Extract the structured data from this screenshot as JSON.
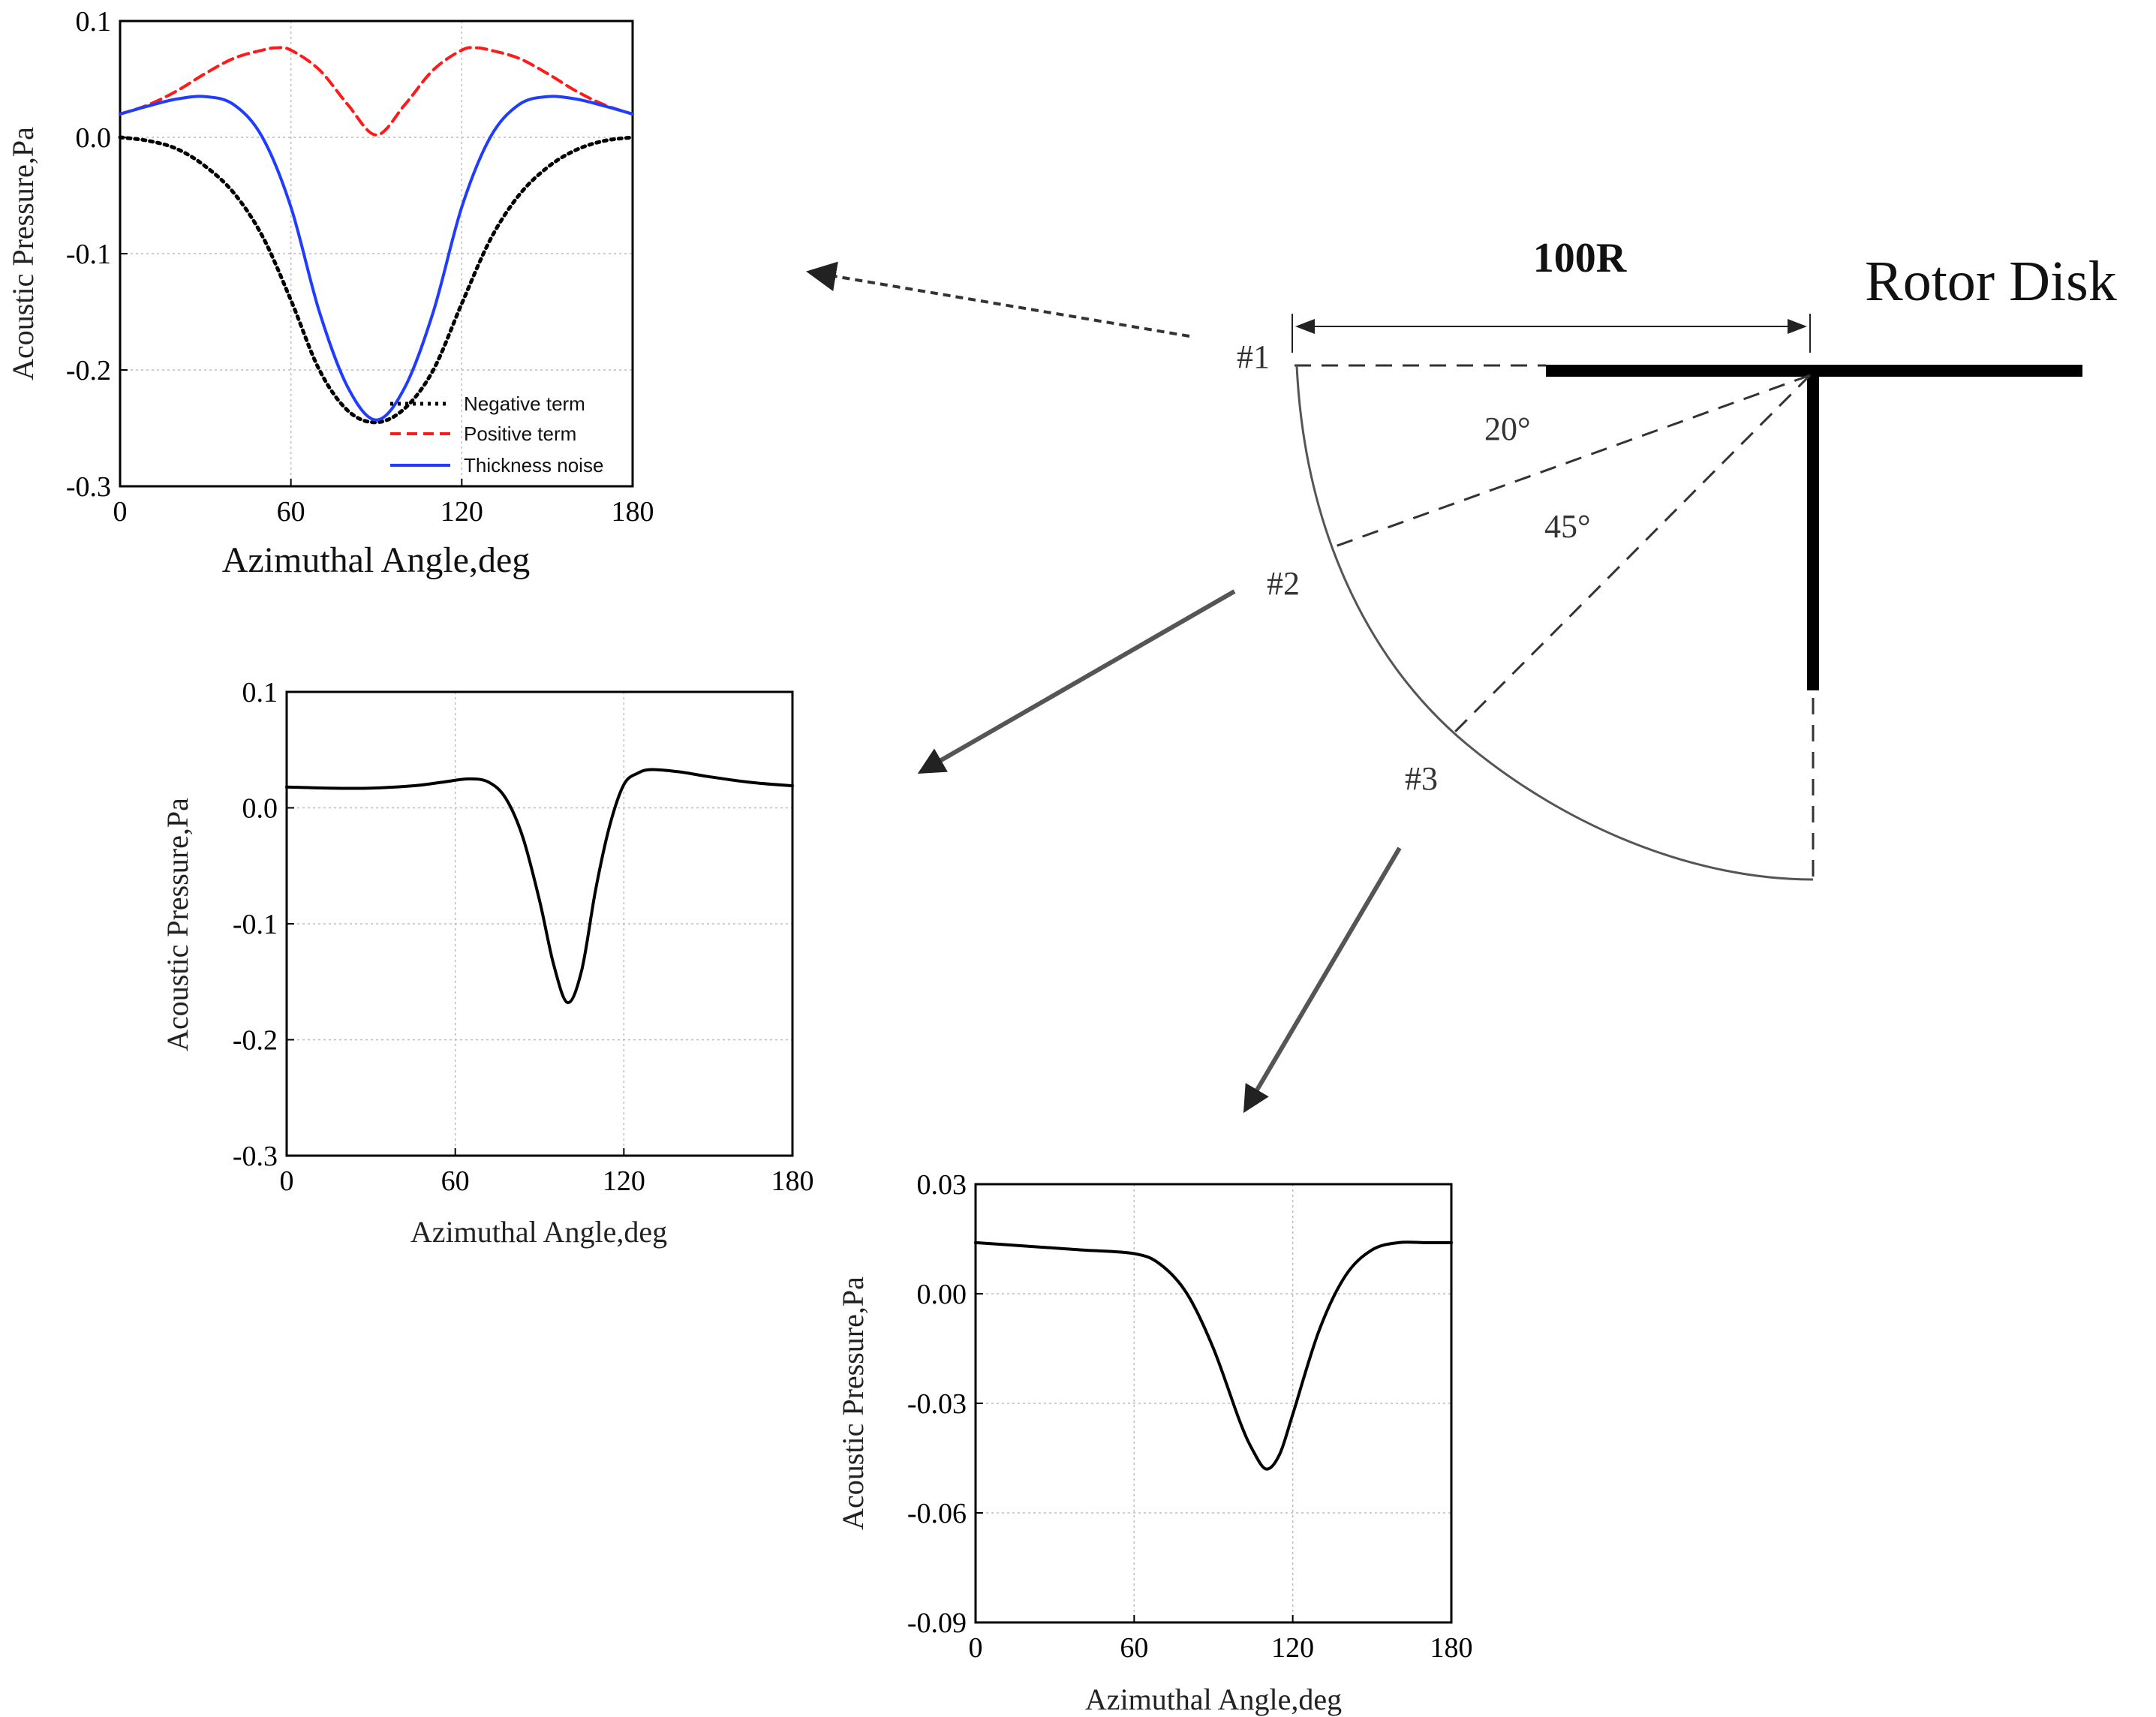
{
  "colors": {
    "negative": "#000000",
    "positive": "#ff1a1a",
    "thickness": "#1f3cff",
    "black": "#000000",
    "diagram_line": "#555555"
  },
  "diagram": {
    "distance_label": "100R",
    "rotor_label": "Rotor Disk",
    "obs1": "#1",
    "obs2": "#2",
    "obs3": "#3",
    "angle1": "20°",
    "angle2": "45°"
  },
  "chart_data": [
    {
      "id": "obs1",
      "type": "line",
      "title": "",
      "xlabel": "Azimuthal Angle,deg",
      "ylabel": "Acoustic Pressure,Pa",
      "xlim": [
        0,
        180
      ],
      "ylim": [
        -0.3,
        0.1
      ],
      "xticks": [
        0,
        60,
        120,
        180
      ],
      "xtick_labels": [
        "0",
        "60",
        "120",
        "180"
      ],
      "yticks": [
        0.1,
        0.0,
        -0.1,
        -0.2,
        -0.3
      ],
      "ytick_labels": [
        "0.1",
        "0.0",
        "-0.1",
        "-0.2",
        "-0.3"
      ],
      "grid": true,
      "legend_position": "bottom-right",
      "series": [
        {
          "name": "Negative term",
          "style": "dotted",
          "x": [
            0,
            10,
            20,
            30,
            40,
            50,
            60,
            70,
            80,
            90,
            100,
            110,
            120,
            130,
            140,
            150,
            160,
            170,
            180
          ],
          "y": [
            0.0,
            -0.003,
            -0.01,
            -0.025,
            -0.048,
            -0.085,
            -0.14,
            -0.2,
            -0.235,
            -0.245,
            -0.233,
            -0.2,
            -0.143,
            -0.088,
            -0.05,
            -0.026,
            -0.011,
            -0.003,
            0.0
          ]
        },
        {
          "name": "Positive term",
          "style": "dashed",
          "x": [
            0,
            10,
            20,
            30,
            40,
            50,
            55,
            60,
            70,
            80,
            90,
            100,
            110,
            120,
            125,
            130,
            140,
            150,
            160,
            170,
            180
          ],
          "y": [
            0.02,
            0.028,
            0.04,
            0.055,
            0.068,
            0.075,
            0.077,
            0.075,
            0.058,
            0.028,
            0.002,
            0.028,
            0.058,
            0.075,
            0.077,
            0.075,
            0.068,
            0.055,
            0.04,
            0.028,
            0.02
          ]
        },
        {
          "name": "Thickness noise",
          "style": "solid",
          "x": [
            0,
            10,
            20,
            30,
            40,
            50,
            60,
            70,
            80,
            90,
            100,
            110,
            120,
            130,
            140,
            150,
            160,
            170,
            180
          ],
          "y": [
            0.02,
            0.027,
            0.033,
            0.035,
            0.028,
            0.0,
            -0.06,
            -0.15,
            -0.215,
            -0.243,
            -0.215,
            -0.15,
            -0.06,
            0.0,
            0.028,
            0.035,
            0.033,
            0.027,
            0.02
          ]
        }
      ]
    },
    {
      "id": "obs2",
      "type": "line",
      "title": "",
      "xlabel": "Azimuthal Angle,deg",
      "ylabel": "Acoustic Pressure,Pa",
      "xlim": [
        0,
        180
      ],
      "ylim": [
        -0.3,
        0.1
      ],
      "xticks": [
        0,
        60,
        120,
        180
      ],
      "xtick_labels": [
        "0",
        "60",
        "120",
        "180"
      ],
      "yticks": [
        0.1,
        0.0,
        -0.1,
        -0.2,
        -0.3
      ],
      "ytick_labels": [
        "0.1",
        "0.0",
        "-0.1",
        "-0.2",
        "-0.3"
      ],
      "grid": true,
      "series": [
        {
          "name": "Thickness noise",
          "style": "solid",
          "x": [
            0,
            15,
            30,
            45,
            55,
            65,
            72,
            78,
            84,
            90,
            95,
            100,
            105,
            110,
            115,
            120,
            125,
            130,
            140,
            150,
            165,
            180
          ],
          "y": [
            0.018,
            0.017,
            0.017,
            0.019,
            0.022,
            0.025,
            0.022,
            0.008,
            -0.025,
            -0.08,
            -0.135,
            -0.168,
            -0.14,
            -0.07,
            -0.015,
            0.02,
            0.03,
            0.033,
            0.031,
            0.027,
            0.022,
            0.019
          ]
        }
      ]
    },
    {
      "id": "obs3",
      "type": "line",
      "title": "",
      "xlabel": "Azimuthal Angle,deg",
      "ylabel": "Acoustic Pressure,Pa",
      "xlim": [
        0,
        180
      ],
      "ylim": [
        -0.09,
        0.03
      ],
      "xticks": [
        0,
        60,
        120,
        180
      ],
      "xtick_labels": [
        "0",
        "60",
        "120",
        "180"
      ],
      "yticks": [
        0.03,
        0.0,
        -0.03,
        -0.06,
        -0.09
      ],
      "ytick_labels": [
        "0.03",
        "0.00",
        "-0.03",
        "-0.06",
        "-0.09"
      ],
      "grid": true,
      "series": [
        {
          "name": "Thickness noise",
          "style": "solid",
          "x": [
            0,
            20,
            40,
            60,
            70,
            80,
            90,
            100,
            105,
            110,
            115,
            120,
            130,
            140,
            150,
            160,
            170,
            180
          ],
          "y": [
            0.014,
            0.013,
            0.012,
            0.011,
            0.008,
            0.0,
            -0.015,
            -0.035,
            -0.043,
            -0.048,
            -0.044,
            -0.033,
            -0.01,
            0.005,
            0.012,
            0.014,
            0.014,
            0.014
          ]
        }
      ]
    }
  ]
}
